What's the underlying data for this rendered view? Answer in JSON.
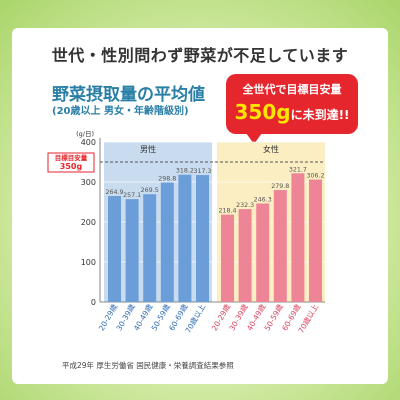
{
  "headline": "世代・性別問わず野菜が不足しています",
  "chart_title": "野菜摂取量の平均値",
  "chart_subtitle": "(20歳以上 男女・年齢階級別)",
  "callout": {
    "line1": "全世代で目標目安量",
    "amount": "350g",
    "line2_suffix": "に未到達!!"
  },
  "source": "平成29年 厚生労働省 国民健康・栄養調査結果参照",
  "colors": {
    "male_bg": "#c9dcef",
    "female_bg": "#fbeec2",
    "male_bar": "#6b9ed9",
    "female_bar": "#ee8597",
    "target": "#e5262d",
    "accent_text": "#2a7fa6"
  },
  "chart_data": {
    "type": "bar",
    "unit": "(g/日)",
    "ylim": [
      0,
      400
    ],
    "yticks": [
      0,
      100,
      200,
      300,
      400
    ],
    "target": {
      "label_line1": "目標目安量",
      "label_line2": "350g",
      "value": 350
    },
    "groups": [
      {
        "name": "男性",
        "categories": [
          "20-29歳",
          "30-39歳",
          "40-49歳",
          "50-59歳",
          "60-69歳",
          "70歳以上"
        ],
        "values": [
          264.9,
          257.1,
          269.5,
          298.8,
          318.2,
          317.3
        ]
      },
      {
        "name": "女性",
        "categories": [
          "20-29歳",
          "30-39歳",
          "40-49歳",
          "50-59歳",
          "60-69歳",
          "70歳以上"
        ],
        "values": [
          218.4,
          232.3,
          246.3,
          279.8,
          321.7,
          306.2
        ]
      }
    ]
  }
}
